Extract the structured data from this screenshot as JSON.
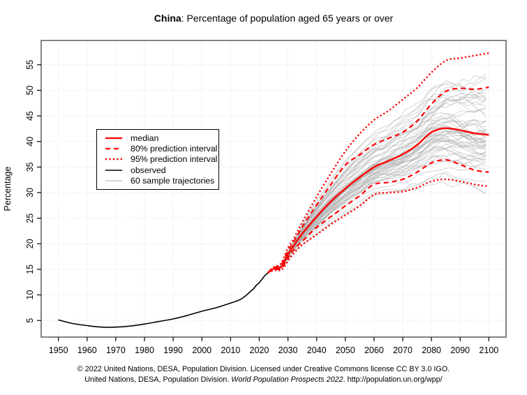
{
  "title": {
    "bold": "China",
    "rest": ": Percentage of population aged 65 years or over"
  },
  "legend": {
    "entries": [
      {
        "label": "median",
        "style": "median"
      },
      {
        "label": "80% prediction interval",
        "style": "pi80"
      },
      {
        "label": "95% prediction interval",
        "style": "pi95"
      },
      {
        "label": "observed",
        "style": "observed"
      },
      {
        "label": "60 sample trajectories",
        "style": "trajectory"
      }
    ]
  },
  "footer": {
    "line1": "© 2022 United Nations, DESA, Population Division. Licensed under Creative Commons license CC BY 3.0 IGO.",
    "line2_prefix": "United Nations, DESA, Population Division. ",
    "line2_italic": "World Population Prospects 2022",
    "line2_suffix": ". http://population.un.org/wpp/"
  },
  "chart_data": {
    "type": "line",
    "title": "China: Percentage of population aged 65 years or over",
    "xlabel": "",
    "ylabel": "Percentage",
    "xlim": [
      1944,
      2106
    ],
    "ylim": [
      1.75,
      59.75
    ],
    "xticks": [
      1950,
      1960,
      1970,
      1980,
      1990,
      2000,
      2010,
      2020,
      2030,
      2040,
      2050,
      2060,
      2070,
      2080,
      2090,
      2100
    ],
    "yticks": [
      5,
      10,
      15,
      20,
      25,
      30,
      35,
      40,
      45,
      50,
      55
    ],
    "grid": true,
    "legend_position": "left-center",
    "colors": {
      "median": "#ff0000",
      "interval": "#ff0000",
      "observed": "#000000",
      "trajectory": "#aaaaaa",
      "grid": "#d6d6d6",
      "box": "#666666",
      "text": "#000000"
    },
    "series": [
      {
        "name": "observed",
        "style": "solid",
        "color_key": "observed",
        "x": [
          1950,
          1955,
          1960,
          1965,
          1970,
          1975,
          1980,
          1985,
          1990,
          1995,
          2000,
          2005,
          2010,
          2013,
          2015,
          2016,
          2017,
          2018,
          2019,
          2020,
          2021,
          2022,
          2023
        ],
        "y": [
          5.1,
          4.4,
          4.0,
          3.7,
          3.7,
          3.9,
          4.3,
          4.8,
          5.3,
          6.0,
          6.8,
          7.5,
          8.4,
          9.0,
          9.7,
          10.2,
          10.7,
          11.2,
          11.9,
          12.4,
          13.1,
          13.8,
          14.3
        ]
      },
      {
        "name": "median",
        "style": "solid",
        "color_key": "median",
        "x": [
          2023,
          2024,
          2025,
          2026,
          2027,
          2028,
          2030,
          2032,
          2035,
          2040,
          2045,
          2050,
          2055,
          2060,
          2065,
          2070,
          2075,
          2080,
          2085,
          2090,
          2095,
          2100
        ],
        "y": [
          14.3,
          14.8,
          15.1,
          15.2,
          15.3,
          15.7,
          17.9,
          19.6,
          22.0,
          25.3,
          28.3,
          30.8,
          33.0,
          35.0,
          36.2,
          37.5,
          39.3,
          41.8,
          42.6,
          42.2,
          41.6,
          41.3
        ]
      },
      {
        "name": "80% prediction interval upper",
        "style": "dashed",
        "color_key": "interval",
        "x": [
          2023,
          2024,
          2025,
          2026,
          2027,
          2028,
          2030,
          2032,
          2035,
          2040,
          2045,
          2050,
          2055,
          2060,
          2065,
          2070,
          2075,
          2080,
          2085,
          2090,
          2095,
          2100
        ],
        "y": [
          14.3,
          14.9,
          15.3,
          15.5,
          15.7,
          16.2,
          18.6,
          20.4,
          23.3,
          27.6,
          31.6,
          35.4,
          37.4,
          39.4,
          40.6,
          41.8,
          44.0,
          47.3,
          49.8,
          50.4,
          50.2,
          50.6
        ]
      },
      {
        "name": "80% prediction interval lower",
        "style": "dashed",
        "color_key": "interval",
        "x": [
          2023,
          2024,
          2025,
          2026,
          2027,
          2028,
          2030,
          2032,
          2035,
          2040,
          2045,
          2050,
          2055,
          2060,
          2065,
          2070,
          2075,
          2080,
          2085,
          2090,
          2095,
          2100
        ],
        "y": [
          14.3,
          14.7,
          14.9,
          15.0,
          15.0,
          15.3,
          17.2,
          18.8,
          20.5,
          23.2,
          25.3,
          27.4,
          29.4,
          31.6,
          32.0,
          32.6,
          34.0,
          35.8,
          36.4,
          35.5,
          34.4,
          34.0
        ]
      },
      {
        "name": "95% prediction interval upper",
        "style": "dotted",
        "color_key": "interval",
        "x": [
          2023,
          2024,
          2025,
          2026,
          2027,
          2028,
          2030,
          2032,
          2035,
          2040,
          2045,
          2050,
          2055,
          2060,
          2065,
          2070,
          2075,
          2080,
          2085,
          2090,
          2095,
          2100
        ],
        "y": [
          14.3,
          15.0,
          15.4,
          15.6,
          15.9,
          16.5,
          19.2,
          21.0,
          24.2,
          29.2,
          33.8,
          38.1,
          41.5,
          44.2,
          46.0,
          48.2,
          50.5,
          53.5,
          55.8,
          56.3,
          56.8,
          57.3
        ]
      },
      {
        "name": "95% prediction interval lower",
        "style": "dotted",
        "color_key": "interval",
        "x": [
          2023,
          2024,
          2025,
          2026,
          2027,
          2028,
          2030,
          2032,
          2035,
          2040,
          2045,
          2050,
          2055,
          2060,
          2065,
          2070,
          2075,
          2080,
          2085,
          2090,
          2095,
          2100
        ],
        "y": [
          14.3,
          14.6,
          14.8,
          14.8,
          14.8,
          15.0,
          16.6,
          18.1,
          19.8,
          21.8,
          23.8,
          25.6,
          27.4,
          29.6,
          30.0,
          30.2,
          31.0,
          32.2,
          32.6,
          32.2,
          31.6,
          31.2
        ]
      }
    ],
    "sample_trajectories": {
      "count": 60,
      "start_year": 2023,
      "end_year": 2100
    }
  }
}
